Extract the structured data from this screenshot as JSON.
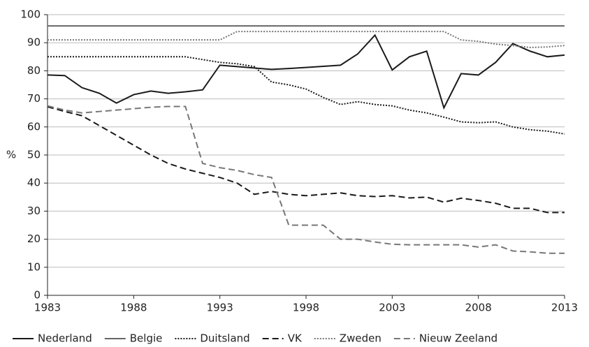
{
  "chart_data": {
    "type": "line",
    "y_label": "%",
    "x": [
      1983,
      1984,
      1985,
      1986,
      1987,
      1988,
      1989,
      1990,
      1991,
      1992,
      1993,
      1994,
      1995,
      1996,
      1997,
      1998,
      1999,
      2000,
      2001,
      2002,
      2003,
      2004,
      2005,
      2006,
      2007,
      2008,
      2009,
      2010,
      2011,
      2012,
      2013
    ],
    "xlim": [
      1983,
      2013
    ],
    "xticks": [
      1983,
      1988,
      1993,
      1998,
      2003,
      2008,
      2013
    ],
    "ylim": [
      0,
      100
    ],
    "yticks": [
      0,
      10,
      20,
      30,
      40,
      50,
      60,
      70,
      80,
      90,
      100
    ],
    "grid": true,
    "legend": "bottom",
    "series": [
      {
        "name": "Nederland",
        "color": "#1a1a1a",
        "style": "solid",
        "values": [
          78.5,
          78.3,
          74,
          72,
          68.5,
          71.5,
          72.8,
          72,
          72.5,
          73.2,
          82,
          81.5,
          81,
          80.5,
          80.8,
          81.2,
          81.6,
          82,
          86,
          92.7,
          80.3,
          85,
          87,
          66.8,
          79,
          78.5,
          83,
          89.7,
          87,
          85,
          85.6
        ]
      },
      {
        "name": "Belgie",
        "color": "#666666",
        "style": "solid",
        "values": [
          96,
          96,
          96,
          96,
          96,
          96,
          96,
          96,
          96,
          96,
          96,
          96,
          96,
          96,
          96,
          96,
          96,
          96,
          96,
          96,
          96,
          96,
          96,
          96,
          96,
          96,
          96,
          96,
          96,
          96,
          96
        ]
      },
      {
        "name": "Duitsland",
        "color": "#1a1a1a",
        "style": "dotted",
        "values": [
          85,
          85,
          85,
          85,
          85,
          85,
          85,
          85,
          85,
          84,
          83,
          82.5,
          81.5,
          76,
          75,
          73.5,
          70.5,
          68,
          69,
          68,
          67.5,
          66,
          65,
          63.5,
          61.8,
          61.5,
          61.8,
          60,
          59,
          58.5,
          57.5
        ]
      },
      {
        "name": "VK",
        "color": "#1a1a1a",
        "style": "dashed",
        "values": [
          67.2,
          65.5,
          64,
          60.5,
          57,
          53.5,
          50,
          47,
          45,
          43.5,
          42,
          40,
          36,
          37,
          36,
          35.5,
          36,
          36.5,
          35.5,
          35.2,
          35.5,
          34.7,
          35,
          33.2,
          34.6,
          33.8,
          32.8,
          31,
          31,
          29.5,
          29.5
        ]
      },
      {
        "name": "Zweden",
        "color": "#777777",
        "style": "dotted",
        "values": [
          91,
          91,
          91,
          91,
          91,
          91,
          91,
          91,
          91,
          91,
          91,
          94,
          94,
          94,
          94,
          94,
          94,
          94,
          94,
          94,
          94,
          94,
          94,
          94,
          91,
          90.5,
          89.5,
          89,
          88.3,
          88.5,
          89
        ]
      },
      {
        "name": "Nieuw Zeeland",
        "color": "#777777",
        "style": "dashed",
        "values": [
          67.5,
          66,
          65,
          65.5,
          66,
          66.5,
          67,
          67.3,
          67.3,
          47,
          45.5,
          44.5,
          43,
          42,
          25,
          25,
          25,
          20,
          20,
          19,
          18.2,
          18,
          18,
          18,
          18,
          17.2,
          18,
          15.8,
          15.5,
          15,
          15
        ]
      }
    ]
  }
}
